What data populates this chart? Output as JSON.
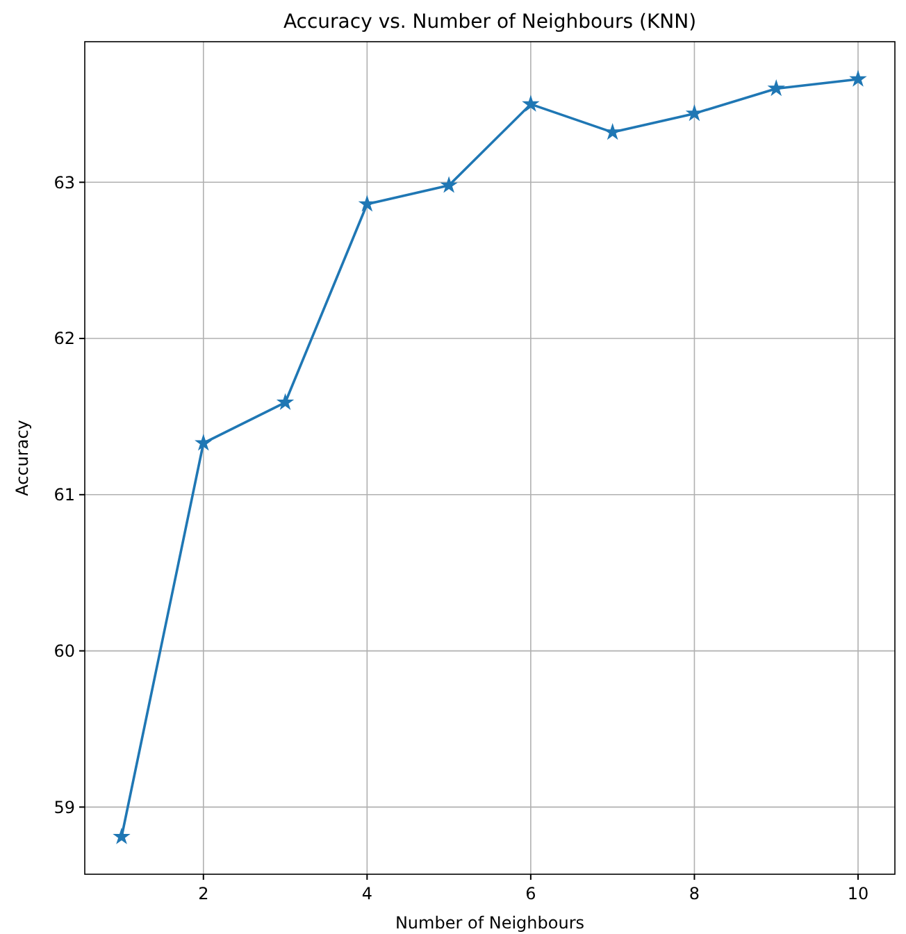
{
  "chart_data": {
    "type": "line",
    "title": "Accuracy vs. Number of Neighbours (KNN)",
    "xlabel": "Number of Neighbours",
    "ylabel": "Accuracy",
    "x": [
      1,
      2,
      3,
      4,
      5,
      6,
      7,
      8,
      9,
      10
    ],
    "series": [
      {
        "color": "#1f77b4",
        "values": [
          58.81,
          61.33,
          61.59,
          62.86,
          62.98,
          63.5,
          63.32,
          63.44,
          63.6,
          63.66
        ]
      }
    ],
    "xlim": [
      0.55,
      10.45
    ],
    "xticks": [
      2,
      4,
      6,
      8,
      10
    ],
    "ylim": [
      58.57,
      63.9
    ],
    "yticks": [
      59,
      60,
      61,
      62,
      63
    ],
    "grid": true,
    "marker": "star",
    "line_style": "solid"
  }
}
